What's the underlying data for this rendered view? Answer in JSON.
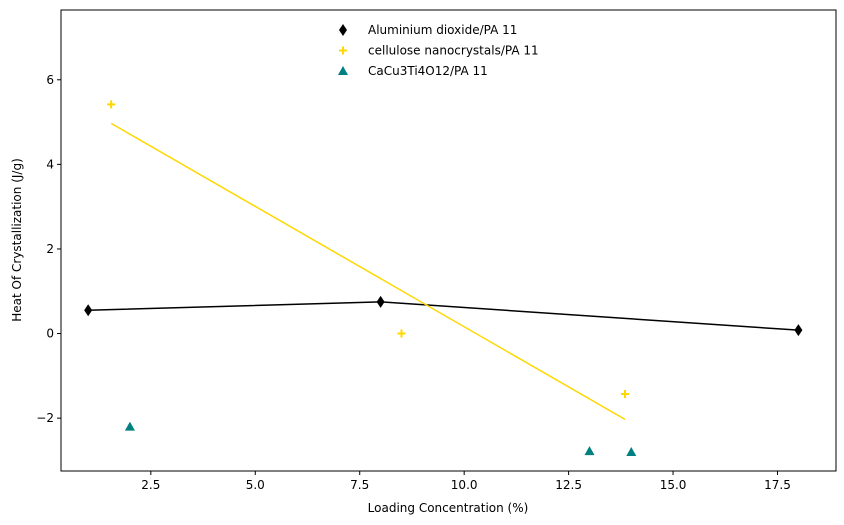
{
  "chart_data": {
    "type": "scatter",
    "title": "",
    "xlabel": "Loading Concentration (%)",
    "ylabel": "Heat Of Crystallization (J/g)",
    "xlim": [
      0.35,
      18.9
    ],
    "ylim": [
      -3.25,
      7.65
    ],
    "x_ticks": [
      2.5,
      5.0,
      7.5,
      10.0,
      12.5,
      15.0,
      17.5
    ],
    "x_tick_labels": [
      "2.5",
      "5.0",
      "7.5",
      "10.0",
      "12.5",
      "15.0",
      "17.5"
    ],
    "y_ticks": [
      -2,
      0,
      2,
      4,
      6
    ],
    "y_tick_labels": [
      "−2",
      "0",
      "2",
      "4",
      "6"
    ],
    "grid": false,
    "legend_position": "upper-center",
    "series": [
      {
        "name": "Aluminium dioxide/PA 11",
        "marker": "thin-diamond",
        "color": "#000000",
        "x": [
          1,
          8,
          18
        ],
        "y": [
          0.55,
          0.75,
          0.08
        ],
        "line": {
          "x": [
            1,
            8,
            18
          ],
          "y": [
            0.55,
            0.75,
            0.08
          ]
        }
      },
      {
        "name": "cellulose nanocrystals/PA 11",
        "marker": "plus",
        "color": "#ffd700",
        "x": [
          1.55,
          8.5,
          13.85
        ],
        "y": [
          5.42,
          0.0,
          -1.43
        ],
        "line": {
          "x": [
            1.55,
            13.85
          ],
          "y": [
            4.97,
            -2.03
          ]
        }
      },
      {
        "name": "CaCu3Ti4O12/PA 11",
        "marker": "triangle",
        "color": "#008080",
        "x": [
          2,
          13,
          14
        ],
        "y": [
          -2.2,
          -2.78,
          -2.8
        ]
      }
    ]
  }
}
